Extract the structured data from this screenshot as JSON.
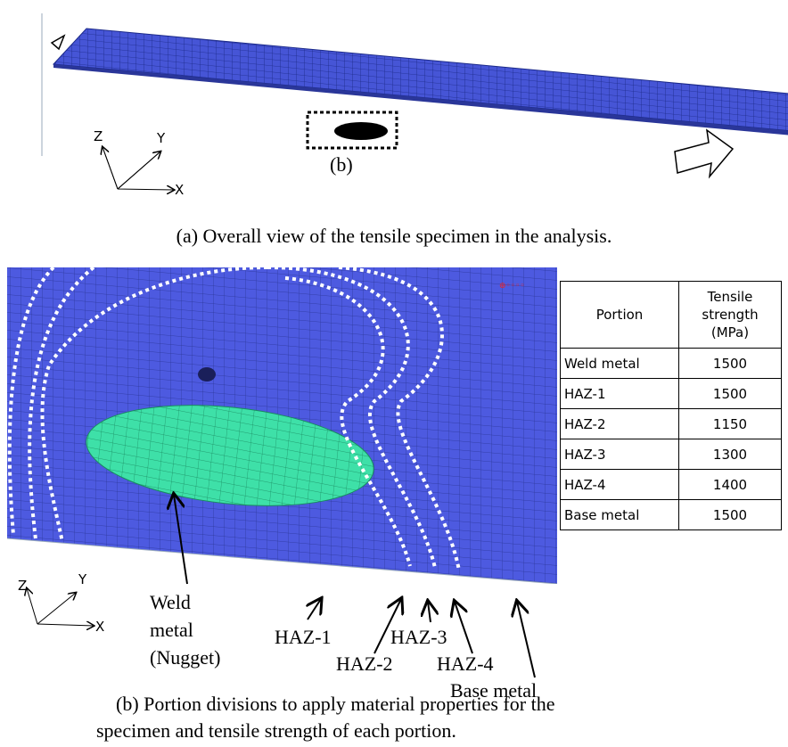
{
  "figure_a": {
    "callout": "(b)",
    "axes": {
      "z": "Z",
      "y": "Y",
      "x": "X"
    },
    "caption": "(a) Overall view of the tensile specimen in the analysis."
  },
  "figure_b": {
    "axes": {
      "z": "Z",
      "y": "Y",
      "x": "X"
    },
    "labels": {
      "weld_metal": [
        "Weld",
        "metal",
        "(Nugget)"
      ],
      "haz1": "HAZ-1",
      "haz2": "HAZ-2",
      "haz3": "HAZ-3",
      "haz4": "HAZ-4",
      "base_metal": "Base metal"
    },
    "caption": [
      "(b) Portion divisions to apply material properties for the",
      "specimen and tensile strength of each portion."
    ]
  },
  "table": {
    "header": {
      "portion": "Portion",
      "strength": [
        "Tensile",
        "strength",
        "(MPa)"
      ]
    },
    "rows": [
      [
        "Weld metal",
        1500
      ],
      [
        "HAZ-1",
        1500
      ],
      [
        "HAZ-2",
        1150
      ],
      [
        "HAZ-3",
        1300
      ],
      [
        "HAZ-4",
        1400
      ],
      [
        "Base metal",
        1500
      ]
    ]
  }
}
